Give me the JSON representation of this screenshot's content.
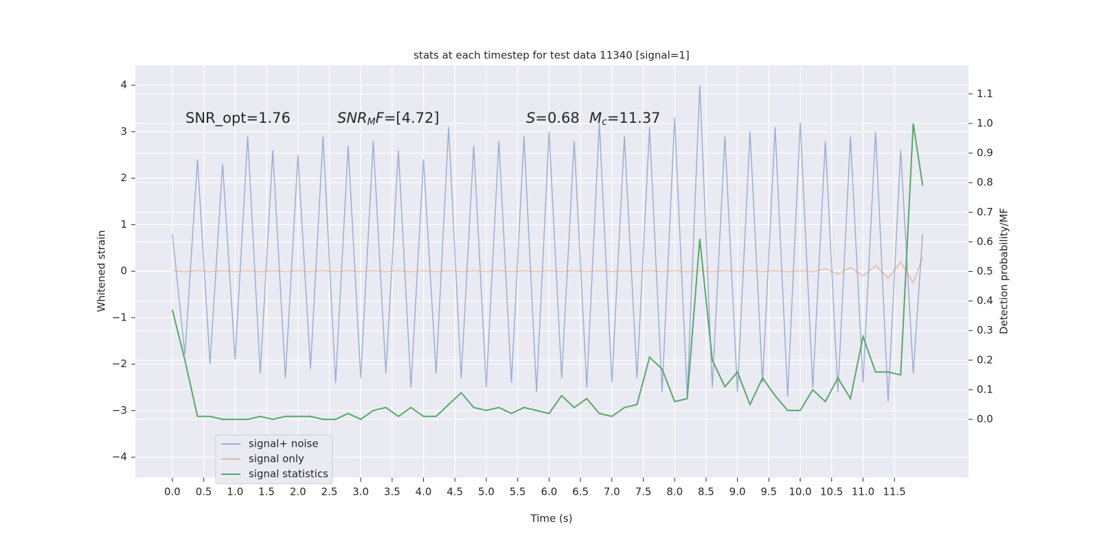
{
  "chart_data": {
    "type": "line",
    "title": "stats at each timestep for test data 11340 [signal=1]",
    "xlabel": "Time (s)",
    "ylabel": "Whitened strain",
    "y2label": "Detection probability/MF",
    "annotations": [
      [
        {
          "text": "SNR_opt=1.76",
          "style": "normal"
        }
      ],
      [
        {
          "text": "SNR",
          "style": "italic"
        },
        {
          "text": "M",
          "style": "sub"
        },
        {
          "text": "F",
          "style": "italic"
        },
        {
          "text": "=[4.72]",
          "style": "normal"
        }
      ],
      [
        {
          "text": "S",
          "style": "italic"
        },
        {
          "text": "=0.68",
          "style": "normal"
        }
      ],
      [
        {
          "text": "M",
          "style": "italic"
        },
        {
          "text": "c",
          "style": "sub"
        },
        {
          "text": "=11.37",
          "style": "normal"
        }
      ]
    ],
    "x": [
      0,
      0.2,
      0.4,
      0.6,
      0.8,
      1,
      1.2,
      1.4,
      1.6,
      1.8,
      2,
      2.2,
      2.4,
      2.6,
      2.8,
      3,
      3.2,
      3.4,
      3.6,
      3.8,
      4,
      4.2,
      4.4,
      4.6,
      4.8,
      5,
      5.2,
      5.4,
      5.6,
      5.8,
      6,
      6.2,
      6.4,
      6.6,
      6.8,
      7,
      7.2,
      7.4,
      7.6,
      7.8,
      8,
      8.2,
      8.4,
      8.6,
      8.8,
      9,
      9.2,
      9.4,
      9.6,
      9.8,
      10,
      10.2,
      10.4,
      10.6,
      10.8,
      11,
      11.2,
      11.4,
      11.6,
      11.8,
      11.95
    ],
    "series": [
      {
        "name": "signal+ noise",
        "color": "#4c72b0",
        "opacity": 0.5,
        "values": [
          0.8,
          -1.8,
          2.4,
          -2.0,
          2.3,
          -1.9,
          2.9,
          -2.2,
          2.6,
          -2.3,
          2.5,
          -2.1,
          2.9,
          -2.4,
          2.7,
          -2.3,
          2.8,
          -2.2,
          2.6,
          -2.5,
          2.4,
          -2.2,
          3.1,
          -2.3,
          2.7,
          -2.5,
          2.8,
          -2.4,
          2.9,
          -2.6,
          3.0,
          -2.3,
          2.8,
          -2.5,
          3.2,
          -2.4,
          2.9,
          -2.3,
          3.1,
          -2.6,
          3.3,
          -2.7,
          4.0,
          -2.5,
          2.9,
          -2.6,
          3.0,
          -2.4,
          3.1,
          -2.7,
          3.2,
          -2.5,
          2.8,
          -2.6,
          2.9,
          -2.4,
          3.0,
          -2.8,
          2.6,
          -2.2,
          0.8
        ]
      },
      {
        "name": "signal only",
        "color": "#dd8452",
        "opacity": 0.5,
        "values": [
          0.01,
          -0.01,
          0.01,
          -0.01,
          0.01,
          -0.01,
          0.01,
          -0.01,
          0.01,
          -0.01,
          0.01,
          -0.01,
          0.01,
          -0.01,
          0.01,
          -0.01,
          0.01,
          -0.01,
          0.01,
          -0.01,
          0.01,
          -0.01,
          0.01,
          -0.01,
          0.01,
          -0.01,
          0.01,
          -0.01,
          0.01,
          -0.01,
          0.01,
          -0.01,
          0.01,
          -0.01,
          0.01,
          -0.01,
          0.01,
          -0.01,
          0.01,
          -0.01,
          0.01,
          -0.01,
          0.01,
          -0.01,
          0.01,
          -0.01,
          0.01,
          -0.01,
          0.01,
          -0.01,
          0.01,
          -0.01,
          0.05,
          -0.06,
          0.08,
          -0.1,
          0.12,
          -0.15,
          0.2,
          -0.25,
          0.3
        ]
      },
      {
        "name": "signal statistics",
        "color": "#55a868",
        "opacity": 1,
        "axis": "y2",
        "values": [
          0.37,
          0.2,
          0.01,
          0.01,
          0.0,
          0.0,
          0.0,
          0.01,
          0.0,
          0.01,
          0.01,
          0.01,
          0.0,
          0.0,
          0.02,
          0.0,
          0.03,
          0.04,
          0.01,
          0.04,
          0.01,
          0.01,
          0.05,
          0.09,
          0.04,
          0.03,
          0.04,
          0.02,
          0.04,
          0.03,
          0.02,
          0.08,
          0.04,
          0.07,
          0.02,
          0.01,
          0.04,
          0.05,
          0.21,
          0.17,
          0.06,
          0.07,
          0.61,
          0.2,
          0.11,
          0.16,
          0.05,
          0.14,
          0.08,
          0.03,
          0.03,
          0.1,
          0.06,
          0.14,
          0.07,
          0.28,
          0.16,
          0.16,
          0.15,
          1.0,
          0.79
        ]
      }
    ],
    "xlim": [
      -0.59,
      12.68
    ],
    "xticks": [
      {
        "value": 0,
        "label": "0.0"
      },
      0.5,
      {
        "value": 1,
        "label": "1.0"
      },
      1.5,
      {
        "value": 2,
        "label": "2.0"
      },
      2.5,
      {
        "value": 3,
        "label": "3.0"
      },
      3.5,
      {
        "value": 4,
        "label": "4.0"
      },
      4.5,
      {
        "value": 5,
        "label": "5.0"
      },
      5.5,
      {
        "value": 6,
        "label": "6.0"
      },
      6.5,
      {
        "value": 7,
        "label": "7.0"
      },
      7.5,
      {
        "value": 8,
        "label": "8.0"
      },
      8.5,
      {
        "value": 9,
        "label": "9.0"
      },
      9.5,
      {
        "value": 10,
        "label": "10.0"
      },
      10.5,
      {
        "value": 11,
        "label": "11.0"
      },
      11.5
    ],
    "ylim": [
      -4.44,
      4.43
    ],
    "yticks": [
      {
        "value": -4,
        "label": "−4"
      },
      {
        "value": -3,
        "label": "−3"
      },
      {
        "value": -2,
        "label": "−2"
      },
      {
        "value": -1,
        "label": "−1"
      },
      0,
      1,
      2,
      3,
      4
    ],
    "y2lim": [
      -0.197,
      1.197
    ],
    "y2ticks": [
      {
        "value": 0,
        "label": "0.0"
      },
      0.1,
      0.2,
      0.3,
      0.4,
      0.5,
      0.6,
      0.7,
      0.8,
      0.9,
      {
        "value": 1,
        "label": "1.0"
      },
      1.1
    ],
    "grid": true,
    "legend": "lower left"
  }
}
